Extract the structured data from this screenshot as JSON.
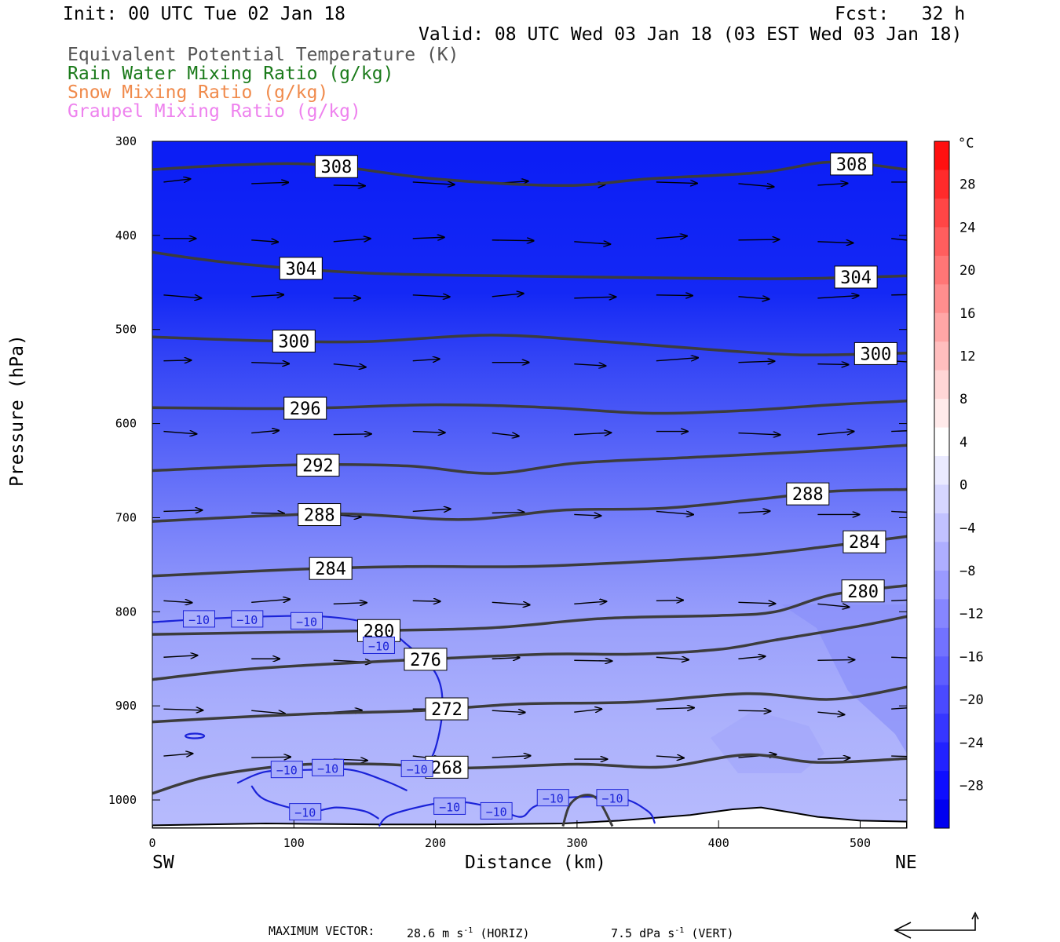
{
  "header": {
    "init": "Init: 00 UTC Tue 02 Jan 18",
    "fcst": "Fcst:   32 h",
    "valid": "Valid: 08 UTC Wed 03 Jan 18 (03 EST Wed 03 Jan 18)",
    "legend": [
      {
        "text": "Equivalent Potential Temperature (K)",
        "color": "#555555"
      },
      {
        "text": "Rain Water Mixing Ratio (g/kg)",
        "color": "#1a7a1a"
      },
      {
        "text": "Snow Mixing Ratio (g/kg)",
        "color": "#f08a4b"
      },
      {
        "text": "Graupel Mixing Ratio (g/kg)",
        "color": "#ee82ee"
      }
    ]
  },
  "footer": {
    "max_vector_label": "MAXIMUM VECTOR:",
    "horiz_value": "28.6 m s",
    "horiz_unit_sup": "-1",
    "horiz_tag": "(HORIZ)",
    "vert_value": "7.5 dPa s",
    "vert_unit_sup": "-1",
    "vert_tag": "(VERT)"
  },
  "chart_data": {
    "type": "cross-section",
    "xlabel": "Distance (km)",
    "ylabel": "Pressure (hPa)",
    "xlim": [
      0,
      533
    ],
    "ylim": [
      1030,
      300
    ],
    "x_ticks": [
      0,
      100,
      200,
      300,
      400,
      500
    ],
    "y_ticks": [
      300,
      400,
      500,
      600,
      700,
      800,
      900,
      1000
    ],
    "x_end_labels": {
      "left": "SW",
      "right": "NE"
    },
    "colorbar": {
      "unit": "°C",
      "tick_labels": [
        "28",
        "24",
        "20",
        "16",
        "12",
        "8",
        "4",
        "0",
        "−4",
        "−8",
        "−12",
        "−16",
        "−20",
        "−24",
        "−28"
      ],
      "colors": [
        "#ff1010",
        "#ff2b2b",
        "#ff4646",
        "#ff5e5e",
        "#ff7676",
        "#ff8e8e",
        "#ffa6a6",
        "#ffbebe",
        "#ffd6d6",
        "#ffeaea",
        "#ffffff",
        "#eaeaff",
        "#d6d6ff",
        "#c2c2ff",
        "#aeaeff",
        "#9a9aff",
        "#8686ff",
        "#7272ff",
        "#5e5eff",
        "#4a4aff",
        "#3636ff",
        "#2222ff",
        "#0e0eff",
        "#0000f0"
      ]
    },
    "theta_e_contours": [
      {
        "label": "308",
        "pts": [
          [
            0,
            330
          ],
          [
            60,
            325
          ],
          [
            120,
            325
          ],
          [
            200,
            340
          ],
          [
            290,
            347
          ],
          [
            350,
            340
          ],
          [
            430,
            333
          ],
          [
            480,
            322
          ],
          [
            533,
            330
          ]
        ]
      },
      {
        "label": "304",
        "pts": [
          [
            0,
            418
          ],
          [
            60,
            430
          ],
          [
            150,
            440
          ],
          [
            250,
            443
          ],
          [
            350,
            445
          ],
          [
            450,
            446
          ],
          [
            533,
            443
          ]
        ]
      },
      {
        "label": "300",
        "pts": [
          [
            0,
            508
          ],
          [
            80,
            512
          ],
          [
            150,
            513
          ],
          [
            240,
            506
          ],
          [
            320,
            513
          ],
          [
            400,
            522
          ],
          [
            460,
            527
          ],
          [
            533,
            525
          ]
        ]
      },
      {
        "label": "296",
        "pts": [
          [
            0,
            583
          ],
          [
            100,
            584
          ],
          [
            200,
            580
          ],
          [
            280,
            583
          ],
          [
            350,
            589
          ],
          [
            420,
            586
          ],
          [
            480,
            580
          ],
          [
            533,
            576
          ]
        ]
      },
      {
        "label": "292",
        "pts": [
          [
            0,
            650
          ],
          [
            100,
            644
          ],
          [
            180,
            645
          ],
          [
            240,
            653
          ],
          [
            300,
            642
          ],
          [
            380,
            636
          ],
          [
            460,
            630
          ],
          [
            533,
            623
          ]
        ]
      },
      {
        "label": "288",
        "pts": [
          [
            0,
            704
          ],
          [
            80,
            698
          ],
          [
            140,
            696
          ],
          [
            220,
            702
          ],
          [
            290,
            692
          ],
          [
            360,
            690
          ],
          [
            430,
            680
          ],
          [
            480,
            672
          ],
          [
            533,
            670
          ]
        ]
      },
      {
        "label": "284",
        "pts": [
          [
            0,
            762
          ],
          [
            100,
            755
          ],
          [
            180,
            752
          ],
          [
            260,
            752
          ],
          [
            330,
            748
          ],
          [
            420,
            740
          ],
          [
            480,
            730
          ],
          [
            533,
            720
          ]
        ]
      },
      {
        "label": "280",
        "pts": [
          [
            0,
            824
          ],
          [
            80,
            822
          ],
          [
            160,
            820
          ],
          [
            240,
            817
          ],
          [
            320,
            807
          ],
          [
            400,
            804
          ],
          [
            440,
            800
          ],
          [
            480,
            782
          ],
          [
            533,
            772
          ]
        ]
      },
      {
        "label": "276",
        "pts": [
          [
            0,
            872
          ],
          [
            60,
            862
          ],
          [
            120,
            856
          ],
          [
            200,
            850
          ],
          [
            280,
            845
          ],
          [
            340,
            845
          ],
          [
            400,
            840
          ],
          [
            440,
            830
          ],
          [
            500,
            815
          ],
          [
            533,
            805
          ]
        ]
      },
      {
        "label": "272",
        "pts": [
          [
            0,
            917
          ],
          [
            60,
            912
          ],
          [
            120,
            908
          ],
          [
            190,
            905
          ],
          [
            260,
            898
          ],
          [
            340,
            896
          ],
          [
            420,
            887
          ],
          [
            480,
            893
          ],
          [
            533,
            880
          ]
        ]
      },
      {
        "label": "268",
        "pts": [
          [
            0,
            993
          ],
          [
            40,
            975
          ],
          [
            100,
            963
          ],
          [
            160,
            962
          ],
          [
            220,
            966
          ],
          [
            300,
            962
          ],
          [
            360,
            965
          ],
          [
            420,
            952
          ],
          [
            470,
            960
          ],
          [
            533,
            956
          ]
        ]
      }
    ],
    "temp_contours": [
      {
        "label": "−10",
        "pts": [
          [
            0,
            811
          ],
          [
            60,
            806
          ],
          [
            120,
            805
          ],
          [
            160,
            815
          ],
          [
            180,
            835
          ],
          [
            200,
            865
          ],
          [
            205,
            900
          ],
          [
            200,
            945
          ],
          [
            190,
            975
          ]
        ]
      },
      {
        "label": "−10",
        "pts": [
          [
            60,
            982
          ],
          [
            80,
            970
          ],
          [
            110,
            968
          ],
          [
            140,
            968
          ],
          [
            165,
            980
          ],
          [
            180,
            990
          ]
        ]
      },
      {
        "label": "−10",
        "pts": [
          [
            70,
            985
          ],
          [
            80,
            1000
          ],
          [
            110,
            1012
          ],
          [
            130,
            1008
          ],
          [
            150,
            1012
          ],
          [
            160,
            1020
          ]
        ]
      },
      {
        "label": "−10",
        "pts": [
          [
            160,
            1028
          ],
          [
            170,
            1015
          ],
          [
            210,
            1002
          ],
          [
            240,
            1008
          ],
          [
            260,
            1018
          ],
          [
            270,
            1007
          ],
          [
            290,
            998
          ],
          [
            330,
            998
          ],
          [
            350,
            1012
          ],
          [
            355,
            1025
          ]
        ]
      }
    ],
    "wind_vector_rows_hpa": [
      345,
      405,
      465,
      535,
      610,
      695,
      790,
      850,
      905,
      955
    ],
    "max_vector": {
      "horiz": 28.6,
      "vert": 7.5
    }
  }
}
